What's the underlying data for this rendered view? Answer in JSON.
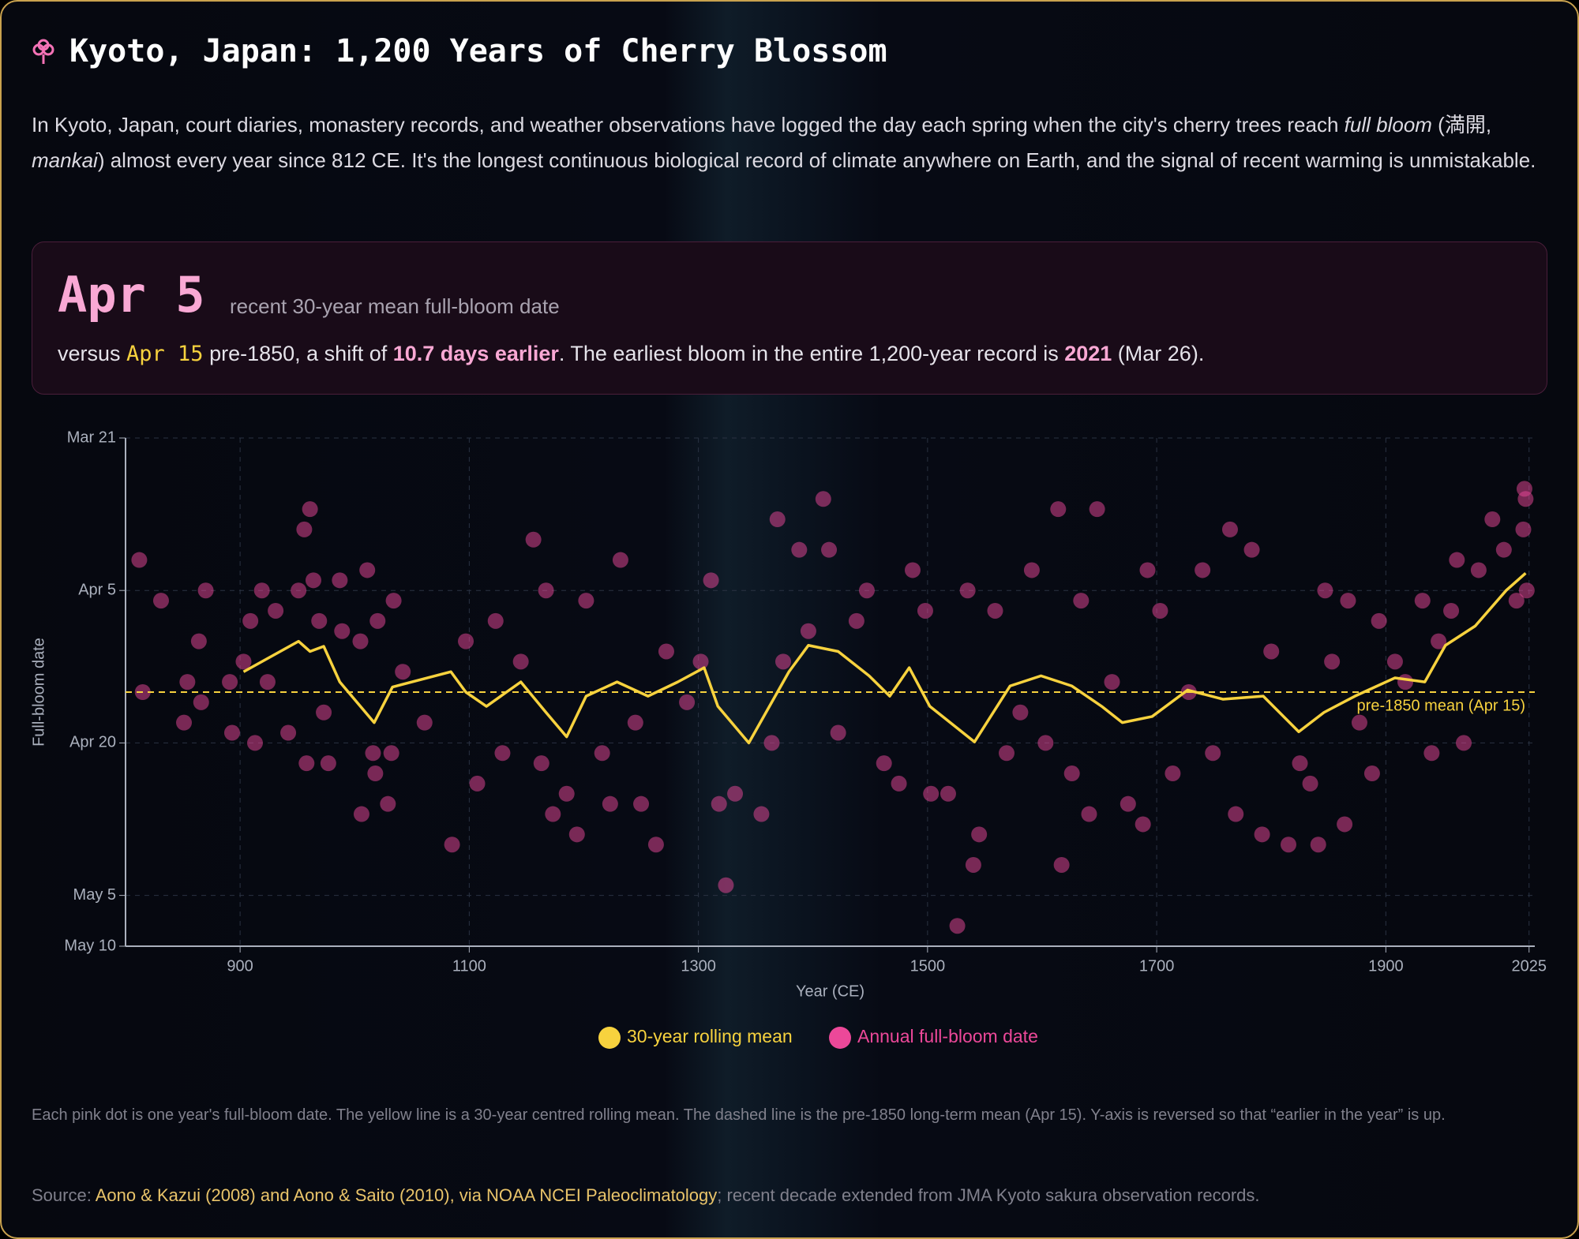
{
  "header": {
    "title": "Kyoto, Japan: 1,200 Years of Cherry Blossom"
  },
  "intro": [
    "In Kyoto, Japan, court diaries, monastery records, and weather observations have logged the day each spring when the city's cherry trees reach ",
    "full bloom",
    " (満開, ",
    "mankai",
    ") almost every year since 812 CE. It's the longest continuous biological record of climate anywhere on Earth, and the signal of recent warming is unmistakable."
  ],
  "stat": {
    "value": "Apr 5",
    "caption": "recent 30-year mean full-bloom date",
    "detail": [
      "versus ",
      "Apr 15",
      " pre-1850, a shift of ",
      "10.7 days earlier",
      ". The earliest bloom in the entire 1,200-year record is ",
      "2021",
      " (Mar 26)."
    ]
  },
  "chart_data": {
    "type": "scatter",
    "x_label": "Year (CE)",
    "y_label": "Full-bloom date",
    "xlim": [
      800,
      2030
    ],
    "xticks": [
      900,
      1100,
      1300,
      1500,
      1700,
      1900,
      2025
    ],
    "ylim": [
      80,
      130
    ],
    "y_reversed": true,
    "yticks": [
      {
        "value": 80,
        "label": "Mar 21"
      },
      {
        "value": 95,
        "label": "Apr 5"
      },
      {
        "value": 110,
        "label": "Apr 20"
      },
      {
        "value": 125,
        "label": "May 5"
      },
      {
        "value": 130,
        "label": "May 10"
      }
    ],
    "grid": true,
    "reference_line": {
      "value": 105,
      "label": "pre-1850 mean (Apr 15)",
      "color": "#f7d23e"
    },
    "series": [
      {
        "name": "30-year rolling mean",
        "kind": "line",
        "color": "#f7d23e",
        "x": [
          903,
          951,
          961,
          973,
          987,
          1017,
          1033,
          1084,
          1097,
          1115,
          1145,
          1167,
          1185,
          1202,
          1229,
          1256,
          1282,
          1305,
          1317,
          1344,
          1379,
          1396,
          1422,
          1449,
          1467,
          1484,
          1502,
          1541,
          1572,
          1599,
          1626,
          1652,
          1670,
          1696,
          1727,
          1758,
          1793,
          1824,
          1846,
          1873,
          1908,
          1934,
          1952,
          1978,
          2005,
          2022
        ],
        "values": [
          103,
          100,
          101,
          100.5,
          104,
          108,
          104.5,
          103,
          105,
          106.4,
          104,
          107,
          109.4,
          105.4,
          104,
          105.4,
          104,
          102.6,
          106.4,
          110,
          103,
          100.4,
          101,
          103.4,
          105.4,
          102.6,
          106.4,
          109.9,
          104.4,
          103.4,
          104.4,
          106.4,
          108,
          107.4,
          104.8,
          105.7,
          105.4,
          108.9,
          107,
          105.4,
          103.6,
          104,
          100.4,
          98.5,
          95,
          93.3
        ]
      },
      {
        "name": "Annual full-bloom date",
        "kind": "scatter",
        "color": "#ec4899",
        "x": [
          812,
          815,
          831,
          851,
          854,
          864,
          866,
          870,
          891,
          893,
          903,
          909,
          913,
          919,
          924,
          931,
          942,
          951,
          956,
          961,
          958,
          964,
          969,
          973,
          977,
          987,
          989,
          1005,
          1006,
          1011,
          1016,
          1018,
          1020,
          1029,
          1034,
          1032,
          1042,
          1061,
          1085,
          1097,
          1107,
          1123,
          1129,
          1145,
          1156,
          1163,
          1167,
          1173,
          1185,
          1194,
          1202,
          1216,
          1223,
          1232,
          1245,
          1250,
          1263,
          1272,
          1290,
          1302,
          1311,
          1318,
          1324,
          1332,
          1355,
          1364,
          1369,
          1374,
          1388,
          1396,
          1409,
          1414,
          1422,
          1438,
          1447,
          1462,
          1475,
          1487,
          1498,
          1503,
          1518,
          1526,
          1535,
          1540,
          1545,
          1559,
          1569,
          1581,
          1591,
          1603,
          1614,
          1617,
          1626,
          1634,
          1641,
          1648,
          1661,
          1675,
          1688,
          1692,
          1703,
          1714,
          1728,
          1740,
          1749,
          1764,
          1769,
          1783,
          1792,
          1800,
          1815,
          1825,
          1834,
          1841,
          1847,
          1853,
          1864,
          1867,
          1877,
          1888,
          1894,
          1908,
          1917,
          1932,
          1940,
          1946,
          1957,
          1962,
          1968,
          1981,
          1993,
          2003,
          2014,
          2020,
          2021,
          2022,
          2023
        ],
        "values": [
          92,
          105,
          96,
          108,
          104,
          100,
          106,
          95,
          104,
          109,
          102,
          98,
          110,
          95,
          104,
          97,
          109,
          95,
          89,
          87,
          112,
          94,
          98,
          107,
          112,
          94,
          99,
          100,
          117,
          93,
          111,
          113,
          98,
          116,
          96,
          111,
          103,
          108,
          120,
          100,
          114,
          98,
          111,
          102,
          90,
          112,
          95,
          117,
          115,
          119,
          96,
          111,
          116,
          92,
          108,
          116,
          120,
          101,
          106,
          102,
          94,
          116,
          124,
          115,
          117,
          110,
          88,
          102,
          91,
          99,
          86,
          91,
          109,
          98,
          95,
          112,
          114,
          93,
          97,
          115,
          115,
          128,
          95,
          122,
          119,
          97,
          111,
          107,
          93,
          110,
          87,
          122,
          113,
          96,
          117,
          87,
          104,
          116,
          118,
          93,
          97,
          113,
          105,
          93,
          111,
          89,
          117,
          91,
          119,
          101,
          120,
          112,
          114,
          120,
          95,
          102,
          118,
          96,
          108,
          113,
          98,
          102,
          104,
          96,
          111,
          100,
          97,
          92,
          110,
          93,
          88,
          91,
          96,
          89,
          85,
          86,
          95
        ]
      }
    ]
  },
  "note": "Each pink dot is one year's full-bloom date. The yellow line is a 30-year centred rolling mean. The dashed line is the pre-1850 long-term mean (Apr 15). Y-axis is reversed so that “earlier in the year” is up.",
  "source": {
    "prefix": "Source: ",
    "link": "Aono & Kazui (2008) and Aono & Saito (2010), via NOAA NCEI Paleoclimatology",
    "suffix": "; recent decade extended from JMA Kyoto sakura observation records."
  }
}
